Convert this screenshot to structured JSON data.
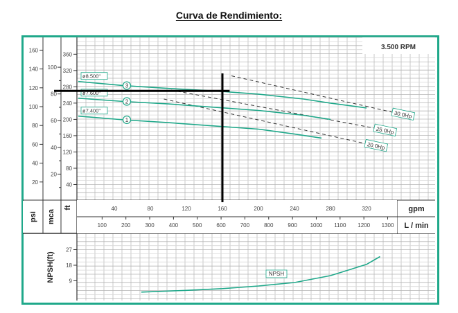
{
  "title": "Curva de Rendimiento:",
  "chart_data": [
    {
      "type": "line",
      "title": "Curva de Rendimiento",
      "annotation_speed": "3.500 RPM",
      "xlabel": "gpm",
      "xlabel_secondary": "L / min",
      "ylabel": "ft",
      "ylabel_secondary": [
        "psi",
        "mca"
      ],
      "x_ticks_gpm": [
        40,
        80,
        120,
        160,
        200,
        240,
        280,
        320
      ],
      "x_ticks_lmin": [
        100,
        200,
        300,
        400,
        500,
        600,
        700,
        800,
        900,
        1000,
        1100,
        1200,
        1300
      ],
      "y_ticks_ft": [
        40,
        80,
        120,
        160,
        200,
        240,
        280,
        320,
        360
      ],
      "y_ticks_mca": [
        20,
        40,
        60,
        80,
        100
      ],
      "y_ticks_psi": [
        20,
        40,
        60,
        80,
        100,
        120,
        140,
        160
      ],
      "grid": true,
      "series": [
        {
          "name": "3",
          "label": "ø8.500\"",
          "x_gpm": [
            0,
            50,
            100,
            150,
            200,
            250,
            280,
            320
          ],
          "y_ft": [
            293,
            283,
            276,
            270,
            262,
            250,
            240,
            228
          ]
        },
        {
          "name": "2",
          "label": "ø7.600\"",
          "x_gpm": [
            0,
            50,
            100,
            150,
            200,
            250,
            280
          ],
          "y_ft": [
            252,
            244,
            238,
            230,
            222,
            210,
            200
          ]
        },
        {
          "name": "1",
          "label": "ø7.400\"",
          "x_gpm": [
            0,
            50,
            100,
            150,
            200,
            240,
            270
          ],
          "y_ft": [
            208,
            199,
            192,
            184,
            176,
            164,
            154
          ]
        }
      ],
      "power_lines": [
        {
          "label": "30.0Hp",
          "x_gpm": [
            170,
            350
          ],
          "y_ft": [
            307,
            217
          ]
        },
        {
          "label": "25.0Hp",
          "x_gpm": [
            103,
            330
          ],
          "y_ft": [
            272,
            178
          ]
        },
        {
          "label": "20.0Hp",
          "x_gpm": [
            95,
            320
          ],
          "y_ft": [
            250,
            140
          ]
        }
      ],
      "operating_point": {
        "gpm": 160,
        "ft": 270,
        "mca": 80
      }
    },
    {
      "type": "line",
      "ylabel": "NPSH(ft)",
      "y_ticks": [
        9,
        18,
        27
      ],
      "series": [
        {
          "name": "NPSH",
          "x_gpm": [
            70,
            120,
            160,
            200,
            240,
            280,
            320,
            335
          ],
          "y_ft": [
            2.5,
            3.5,
            4.5,
            6,
            8,
            12,
            18.5,
            23
          ]
        }
      ]
    }
  ]
}
